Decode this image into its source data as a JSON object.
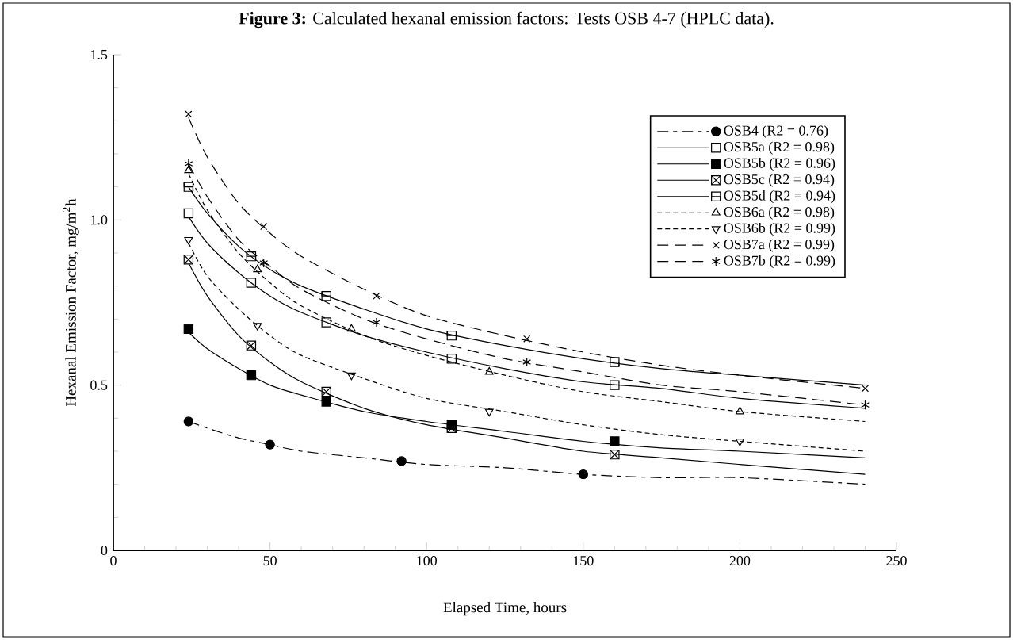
{
  "chart_data": {
    "type": "scatter",
    "title": "**Figure 3:** Calculated hexanal emission factors: Tests OSB 4-7 (HPLC data).",
    "xlabel": "Elapsed Time, hours",
    "ylabel": "Hexanal Emission Factor, mg/m$^{2}$h",
    "xlim": [
      0,
      250
    ],
    "ylim": [
      0,
      1.5
    ],
    "xticks": [
      0,
      50,
      100,
      150,
      200,
      250
    ],
    "yticks": [
      0,
      0.5,
      {
        "value": 1.0,
        "label": "1.0"
      },
      1.5
    ],
    "legend": "top right",
    "series": [
      {
        "name": "OSB4 (R2 = 0.76)",
        "color": "#000000",
        "marker": "circle",
        "line_style": "long short dashed",
        "x": [
          24,
          50,
          92,
          150
        ],
        "values": [
          0.39,
          0.32,
          0.27,
          0.23
        ]
      },
      {
        "name": "OSB5a (R2 = 0.98)",
        "color": "#000000",
        "marker": "square",
        "line_style": "solid",
        "x": [
          24,
          44,
          68,
          108,
          160
        ],
        "values": [
          1.02,
          0.81,
          0.69,
          0.58,
          0.5
        ]
      },
      {
        "name": "OSB5b (R2 = 0.96)",
        "color": "#000000",
        "marker": "square",
        "line_style": "solid",
        "x": [
          24,
          44,
          68,
          108,
          160
        ],
        "values": [
          0.67,
          0.53,
          0.45,
          0.38,
          0.33
        ]
      },
      {
        "name": "OSB5c (R2 = 0.94)",
        "color": "#000000",
        "marker": "square",
        "line_style": "solid",
        "x": [
          24,
          44,
          68,
          108,
          160
        ],
        "values": [
          0.88,
          0.62,
          0.48,
          0.37,
          0.29
        ]
      },
      {
        "name": "OSB5d (R2 = 0.94)",
        "color": "#000000",
        "marker": "square",
        "line_style": "solid",
        "x": [
          24,
          44,
          68,
          108,
          160
        ],
        "values": [
          1.1,
          0.89,
          0.77,
          0.65,
          0.57
        ]
      },
      {
        "name": "OSB6a (R2 = 0.98)",
        "color": "#000000",
        "marker": "triangle",
        "line_style": "dashed",
        "x": [
          24,
          46,
          76,
          120,
          200
        ],
        "values": [
          1.15,
          0.85,
          0.67,
          0.54,
          0.42
        ]
      },
      {
        "name": "OSB6b (R2 = 0.99)",
        "color": "#000000",
        "marker": "triangle",
        "line_style": "dashed",
        "x": [
          24,
          46,
          76,
          120,
          200
        ],
        "values": [
          0.94,
          0.68,
          0.53,
          0.42,
          0.33
        ]
      },
      {
        "name": "OSB7a (R2 = 0.99)",
        "color": "#000000",
        "marker": "cross",
        "line_style": "long dashed",
        "x": [
          24,
          48,
          84,
          132,
          240
        ],
        "values": [
          1.32,
          0.98,
          0.77,
          0.64,
          0.49
        ]
      },
      {
        "name": "OSB7b (R2 = 0.99)",
        "color": "#000000",
        "marker": "cross",
        "line_style": "long dashed",
        "x": [
          24,
          48,
          84,
          132,
          240
        ],
        "values": [
          1.17,
          0.87,
          0.69,
          0.57,
          0.44
        ]
      },
      {
        "type": "line",
        "color": "#000000",
        "line_style": "long short dashed",
        "x": [
          24,
          30,
          40,
          50,
          60,
          80,
          100,
          125,
          150,
          175,
          200,
          240
        ],
        "values": [
          0.39,
          0.37,
          0.34,
          0.32,
          0.3,
          0.28,
          0.26,
          0.25,
          0.23,
          0.22,
          0.22,
          0.2
        ]
      },
      {
        "type": "line",
        "color": "#000000",
        "line_style": "solid",
        "x": [
          24,
          30,
          40,
          50,
          60,
          80,
          100,
          125,
          150,
          175,
          200,
          240
        ],
        "values": [
          1.01,
          0.93,
          0.84,
          0.77,
          0.72,
          0.65,
          0.6,
          0.55,
          0.51,
          0.49,
          0.46,
          0.43
        ]
      },
      {
        "type": "line",
        "color": "#000000",
        "line_style": "solid",
        "x": [
          24,
          30,
          40,
          50,
          60,
          80,
          100,
          125,
          150,
          175,
          200,
          240
        ],
        "values": [
          0.66,
          0.61,
          0.55,
          0.5,
          0.47,
          0.42,
          0.39,
          0.36,
          0.33,
          0.31,
          0.3,
          0.28
        ]
      },
      {
        "type": "line",
        "color": "#000000",
        "line_style": "solid",
        "x": [
          24,
          30,
          40,
          50,
          60,
          80,
          100,
          125,
          150,
          175,
          200,
          240
        ],
        "values": [
          0.87,
          0.77,
          0.65,
          0.57,
          0.51,
          0.43,
          0.38,
          0.34,
          0.3,
          0.28,
          0.26,
          0.23
        ]
      },
      {
        "type": "line",
        "color": "#000000",
        "line_style": "solid",
        "x": [
          24,
          30,
          40,
          50,
          60,
          80,
          100,
          125,
          150,
          175,
          200,
          240
        ],
        "values": [
          1.1,
          1.02,
          0.92,
          0.85,
          0.8,
          0.73,
          0.67,
          0.62,
          0.58,
          0.55,
          0.53,
          0.5
        ]
      },
      {
        "type": "line",
        "color": "#000000",
        "line_style": "dashed",
        "x": [
          24,
          30,
          40,
          50,
          60,
          80,
          100,
          125,
          150,
          175,
          200,
          240
        ],
        "values": [
          1.14,
          1.03,
          0.9,
          0.81,
          0.74,
          0.65,
          0.59,
          0.53,
          0.48,
          0.45,
          0.42,
          0.39
        ]
      },
      {
        "type": "line",
        "color": "#000000",
        "line_style": "dashed",
        "x": [
          24,
          30,
          40,
          50,
          60,
          80,
          100,
          125,
          150,
          175,
          200,
          240
        ],
        "values": [
          0.93,
          0.83,
          0.73,
          0.65,
          0.59,
          0.52,
          0.46,
          0.42,
          0.38,
          0.35,
          0.33,
          0.3
        ]
      },
      {
        "type": "line",
        "color": "#000000",
        "line_style": "long dashed",
        "x": [
          24,
          30,
          40,
          50,
          60,
          80,
          100,
          125,
          150,
          175,
          200,
          240
        ],
        "values": [
          1.31,
          1.19,
          1.05,
          0.96,
          0.89,
          0.79,
          0.71,
          0.65,
          0.6,
          0.56,
          0.53,
          0.49
        ]
      },
      {
        "type": "line",
        "color": "#000000",
        "line_style": "long dashed",
        "x": [
          24,
          30,
          40,
          50,
          60,
          80,
          100,
          125,
          150,
          175,
          200,
          240
        ],
        "values": [
          1.17,
          1.07,
          0.94,
          0.86,
          0.79,
          0.7,
          0.64,
          0.58,
          0.54,
          0.5,
          0.48,
          0.44
        ]
      }
    ]
  }
}
